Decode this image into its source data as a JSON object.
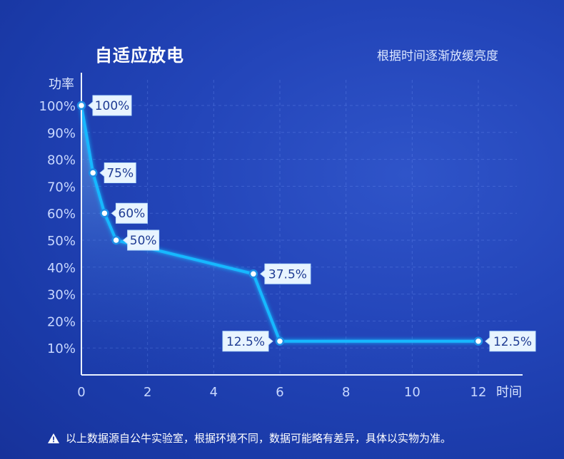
{
  "header": {
    "title": "自适应放电",
    "subtitle": "根据时间逐渐放缓亮度"
  },
  "footer": {
    "note": "以上数据源自公牛实验室，根据环境不同，数据可能略有差异，具体以实物为准。",
    "icon": "warning-icon"
  },
  "colors": {
    "line": "#19b8ff",
    "label_bg": "#e8f4ff",
    "label_text": "#1f3c93",
    "axis": "#eaf1ff"
  },
  "chart_data": {
    "type": "line",
    "ylabel": "功率",
    "xlabel": "时间",
    "xlim": [
      0,
      12
    ],
    "ylim": [
      0,
      100
    ],
    "x_ticks": [
      0,
      2,
      4,
      6,
      8,
      10,
      12
    ],
    "y_ticks": [
      "10%",
      "20%",
      "30%",
      "40%",
      "50%",
      "60%",
      "70%",
      "80%",
      "90%",
      "100%"
    ],
    "grid": true,
    "points": [
      {
        "x": 0,
        "y": 100,
        "label": "100%"
      },
      {
        "x": 0.35,
        "y": 75,
        "label": "75%"
      },
      {
        "x": 0.7,
        "y": 60,
        "label": "60%"
      },
      {
        "x": 1.05,
        "y": 50,
        "label": "50%"
      },
      {
        "x": 5.2,
        "y": 37.5,
        "label": "37.5%"
      },
      {
        "x": 6,
        "y": 12.5,
        "label": "12.5%"
      },
      {
        "x": 12,
        "y": 12.5,
        "label": "12.5%"
      }
    ]
  }
}
